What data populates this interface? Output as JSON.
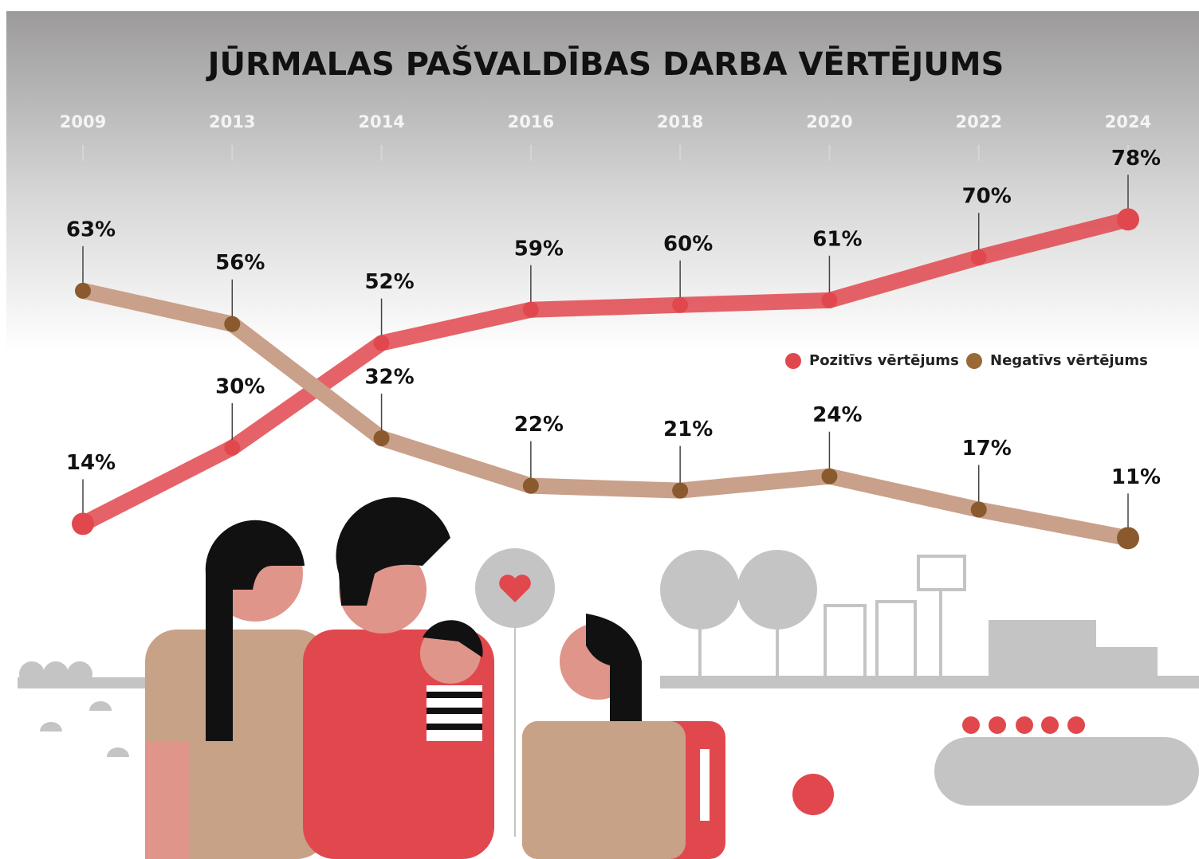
{
  "chart_data": {
    "type": "line",
    "title": "JŪRMALAS PAŠVALDĪBAS DARBA VĒRTĒJUMS",
    "categories": [
      "2009",
      "2013",
      "2014",
      "2016",
      "2018",
      "2020",
      "2022",
      "2024"
    ],
    "ylim": [
      0,
      100
    ],
    "series": [
      {
        "name": "Pozitīvs vērtējums",
        "color": "#e1484d",
        "values": [
          14,
          30,
          52,
          59,
          60,
          61,
          70,
          78
        ],
        "value_labels": [
          "14%",
          "30%",
          "52%",
          "59%",
          "60%",
          "61%",
          "70%",
          "78%"
        ]
      },
      {
        "name": "Negatīvs vērtējums",
        "color": "#8a5a2e",
        "values": [
          63,
          56,
          32,
          22,
          21,
          24,
          17,
          11
        ],
        "value_labels": [
          "63%",
          "56%",
          "32%",
          "22%",
          "21%",
          "24%",
          "17%",
          "11%"
        ]
      }
    ]
  }
}
